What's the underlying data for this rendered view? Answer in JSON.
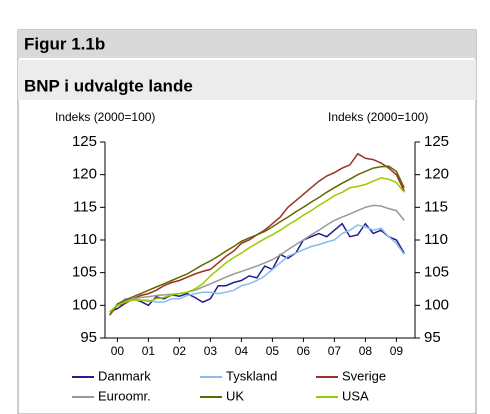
{
  "chart_data": {
    "type": "line",
    "figure_label": "Figur 1.1b",
    "title": "BNP i udvalgte lande",
    "y_label": "Indeks (2000=100)",
    "y2_label": "Indeks (2000=100)",
    "x": [
      1999.75,
      2000,
      2000.25,
      2000.5,
      2000.75,
      2001,
      2001.25,
      2001.5,
      2001.75,
      2002,
      2002.25,
      2002.5,
      2002.75,
      2003,
      2003.25,
      2003.5,
      2003.75,
      2004,
      2004.25,
      2004.5,
      2004.75,
      2005,
      2005.25,
      2005.5,
      2005.75,
      2006,
      2006.25,
      2006.5,
      2006.75,
      2007,
      2007.25,
      2007.5,
      2007.75,
      2008,
      2008.25,
      2008.5,
      2008.75,
      2009,
      2009.25
    ],
    "series": [
      {
        "name": "Danmark",
        "color": "#1f1f8f",
        "values": [
          99,
          99.5,
          100.3,
          101,
          100.6,
          100,
          101.3,
          101,
          101.6,
          101.4,
          101.8,
          101.2,
          100.5,
          101,
          103,
          103,
          103.5,
          103.8,
          104.5,
          104.2,
          106,
          105.5,
          107.8,
          107.2,
          108,
          110,
          110.5,
          111,
          110.5,
          111.5,
          112.5,
          110.5,
          110.8,
          112.5,
          111,
          111.5,
          110.5,
          110,
          108
        ]
      },
      {
        "name": "Tyskland",
        "color": "#88bbee",
        "values": [
          99,
          100,
          101,
          101,
          100.8,
          100.8,
          100.5,
          100.5,
          101,
          101,
          101.5,
          101.8,
          102,
          102,
          101.8,
          102,
          102.3,
          103,
          103.3,
          103.8,
          104.5,
          105.5,
          106.5,
          107.5,
          108,
          108.5,
          109,
          109.3,
          109.7,
          110,
          111,
          111.5,
          112.3,
          112,
          111.5,
          111.8,
          110.5,
          109.5,
          107.8
        ]
      },
      {
        "name": "Sverige",
        "color": "#993322",
        "values": [
          98.5,
          100,
          100.3,
          101,
          101.5,
          101.8,
          102.3,
          103,
          103.5,
          103.8,
          104.3,
          104.8,
          105.2,
          105.5,
          106.5,
          107.5,
          108.3,
          109.5,
          110,
          110.8,
          111.5,
          112.5,
          113.5,
          115,
          116,
          117,
          118,
          119,
          119.8,
          120.3,
          121,
          121.5,
          123.2,
          122.5,
          122.3,
          121.8,
          121,
          120,
          117.5
        ]
      },
      {
        "name": "Euroomr.",
        "color": "#999999",
        "values": [
          99,
          100,
          100.6,
          101,
          101.2,
          101.3,
          101.5,
          101.6,
          101.7,
          101.8,
          102,
          102.3,
          102.8,
          103.3,
          103.8,
          104.3,
          104.8,
          105.2,
          105.6,
          106,
          106.5,
          107,
          107.7,
          108.5,
          109.3,
          110,
          110.8,
          111.5,
          112.3,
          113,
          113.5,
          114,
          114.5,
          115,
          115.3,
          115.2,
          114.8,
          114.5,
          113
        ]
      },
      {
        "name": "UK",
        "color": "#666600",
        "values": [
          98.5,
          100.2,
          100.8,
          101.3,
          101.8,
          102.3,
          102.8,
          103.3,
          103.8,
          104.3,
          104.8,
          105.5,
          106.2,
          106.8,
          107.5,
          108.3,
          109,
          109.8,
          110.3,
          110.8,
          111.3,
          112,
          112.8,
          113.5,
          114.3,
          115,
          115.8,
          116.5,
          117.3,
          118,
          118.7,
          119.3,
          120,
          120.5,
          121,
          121.2,
          121.3,
          120.5,
          118
        ]
      },
      {
        "name": "USA",
        "color": "#99cc00",
        "values": [
          99,
          100,
          100.5,
          100.8,
          100.8,
          100.6,
          101,
          101.2,
          101.6,
          101.8,
          102,
          102.5,
          103.3,
          104.5,
          105.5,
          106.5,
          107.3,
          108,
          108.8,
          109.5,
          110.2,
          110.8,
          111.5,
          112.3,
          113,
          113.8,
          114.5,
          115.3,
          116,
          116.8,
          117.3,
          118,
          118.2,
          118.5,
          119,
          119.5,
          119.3,
          118.8,
          117.3
        ]
      }
    ],
    "xlim": [
      1999.6,
      2009.6
    ],
    "xticks": [
      {
        "value": 2000,
        "label": "00"
      },
      {
        "value": 2001,
        "label": "01"
      },
      {
        "value": 2002,
        "label": "02"
      },
      {
        "value": 2003,
        "label": "03"
      },
      {
        "value": 2004,
        "label": "04"
      },
      {
        "value": 2005,
        "label": "05"
      },
      {
        "value": 2006,
        "label": "06"
      },
      {
        "value": 2007,
        "label": "07"
      },
      {
        "value": 2008,
        "label": "08"
      },
      {
        "value": 2009,
        "label": "09"
      }
    ],
    "ylim": [
      95,
      125
    ],
    "yticks": [
      95,
      100,
      105,
      110,
      115,
      120,
      125
    ],
    "y2lim": [
      95,
      125
    ],
    "y2ticks": [
      95,
      100,
      105,
      110,
      115,
      120,
      125
    ],
    "grid": false,
    "legend": "bottom"
  }
}
